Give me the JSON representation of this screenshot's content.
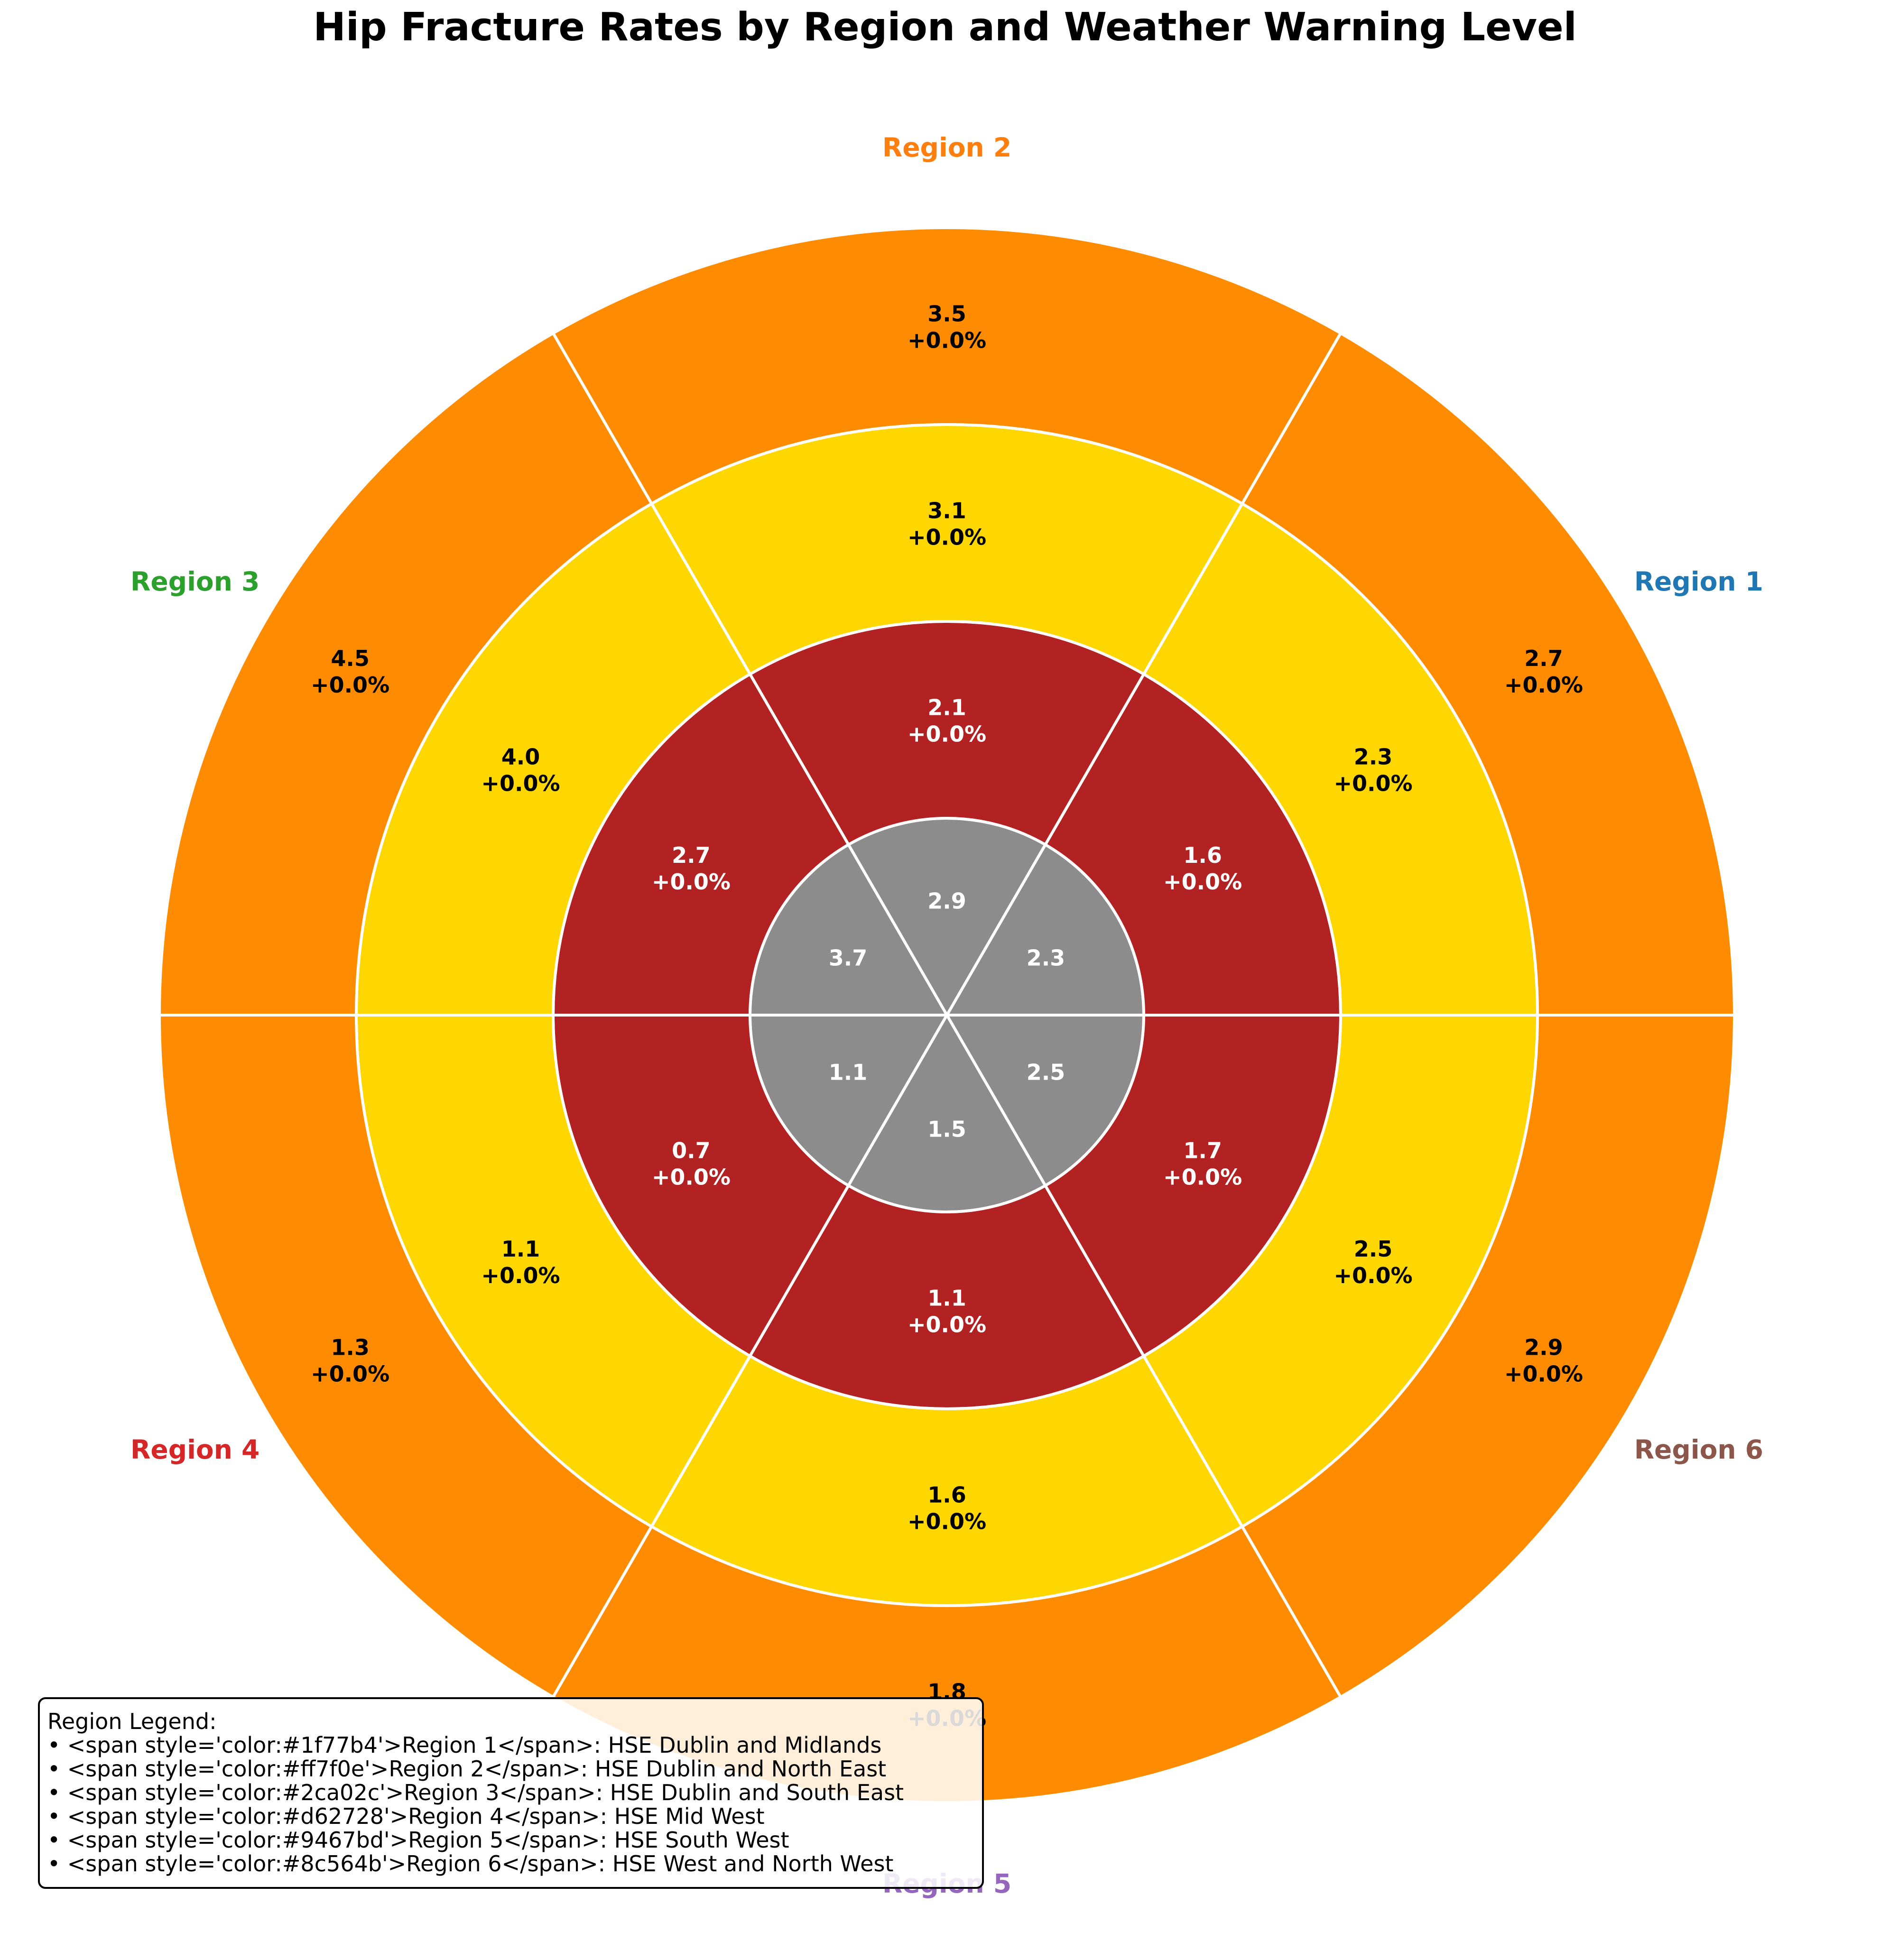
{
  "chart_data": {
    "type": "pie",
    "title": "Hip Fracture Rates by Region and Weather Warning Level",
    "regions": [
      {
        "label": "Region 1",
        "color": "#1f77b4"
      },
      {
        "label": "Region 2",
        "color": "#ff7f0e"
      },
      {
        "label": "Region 3",
        "color": "#2ca02c"
      },
      {
        "label": "Region 4",
        "color": "#d62728"
      },
      {
        "label": "Region 5",
        "color": "#9467bd"
      },
      {
        "label": "Region 6",
        "color": "#8c564b"
      }
    ],
    "rings": [
      {
        "color": "#8c8c8c",
        "label_color": "#ffffff",
        "values": [
          "2.3",
          "2.9",
          "3.7",
          "1.1",
          "1.5",
          "2.5"
        ],
        "changes": null
      },
      {
        "color": "#b22222",
        "label_color": "#ffffff",
        "values": [
          "1.6",
          "2.1",
          "2.7",
          "0.7",
          "1.1",
          "1.7"
        ],
        "changes": [
          "+0.0%",
          "+0.0%",
          "+0.0%",
          "+0.0%",
          "+0.0%",
          "+0.0%"
        ]
      },
      {
        "color": "#ffd700",
        "label_color": "#000000",
        "values": [
          "2.3",
          "3.1",
          "4.0",
          "1.1",
          "1.6",
          "2.5"
        ],
        "changes": [
          "+0.0%",
          "+0.0%",
          "+0.0%",
          "+0.0%",
          "+0.0%",
          "+0.0%"
        ]
      },
      {
        "color": "#ff8c00",
        "label_color": "#000000",
        "values": [
          "2.7",
          "3.5",
          "4.5",
          "1.3",
          "1.8",
          "2.9"
        ],
        "changes": [
          "+0.0%",
          "+0.0%",
          "+0.0%",
          "+0.0%",
          "+0.0%",
          "+0.0%"
        ]
      }
    ],
    "legend": {
      "placement": "bottom-left",
      "lines": [
        "Region Legend:",
        "• <span style='color:#1f77b4'>Region 1</span>: HSE Dublin and Midlands",
        "• <span style='color:#ff7f0e'>Region 2</span>: HSE Dublin and North East",
        "• <span style='color:#2ca02c'>Region 3</span>: HSE Dublin and South East",
        "• <span style='color:#d62728'>Region 4</span>: HSE Mid West",
        "• <span style='color:#9467bd'>Region 5</span>: HSE South West",
        "• <span style='color:#8c564b'>Region 6</span>: HSE West and North West"
      ]
    }
  }
}
